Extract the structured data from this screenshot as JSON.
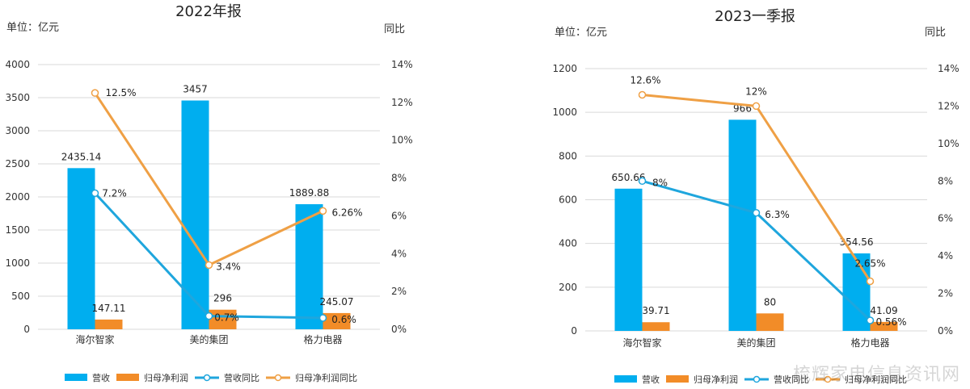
{
  "colors": {
    "revenue_bar": "#00AEEF",
    "profit_bar": "#F28C28",
    "revenue_yoy_line": "#1FA6DD",
    "profit_yoy_line": "#EFA045",
    "axis_text": "#333333",
    "grid": "#D9D9D9"
  },
  "watermark": "梳辉家电信息资讯网",
  "chart_data": [
    {
      "type": "bar",
      "title": "2022年报",
      "left_axis_label": "单位：亿元",
      "right_axis_label": "同比",
      "categories": [
        "海尔智家",
        "美的集团",
        "格力电器"
      ],
      "ylim": [
        0,
        4000
      ],
      "yticks": [
        0,
        500,
        1000,
        1500,
        2000,
        2500,
        3000,
        3500,
        4000
      ],
      "y2lim": [
        0,
        14
      ],
      "y2ticks": [
        "0%",
        "2%",
        "4%",
        "6%",
        "8%",
        "10%",
        "12%",
        "14%"
      ],
      "grid": true,
      "legend_position": "bottom",
      "series": [
        {
          "name": "营收",
          "kind": "bar",
          "axis": "left",
          "values": [
            2435.14,
            3457,
            1889.88
          ],
          "labels": [
            "2435.14",
            "3457",
            "1889.88"
          ]
        },
        {
          "name": "归母净利润",
          "kind": "bar",
          "axis": "left",
          "values": [
            147.11,
            296,
            245.07
          ],
          "labels": [
            "147.11",
            "296",
            "245.07"
          ]
        },
        {
          "name": "营收同比",
          "kind": "line",
          "axis": "right",
          "values": [
            7.2,
            0.7,
            0.6
          ],
          "labels": [
            "7.2%",
            "0.7%",
            "0.6%"
          ]
        },
        {
          "name": "归母净利润同比",
          "kind": "line",
          "axis": "right",
          "values": [
            12.5,
            3.4,
            6.26
          ],
          "labels": [
            "12.5%",
            "3.4%",
            "6.26%"
          ]
        }
      ]
    },
    {
      "type": "bar",
      "title": "2023一季报",
      "left_axis_label": "单位：亿元",
      "right_axis_label": "同比",
      "categories": [
        "海尔智家",
        "美的集团",
        "格力电器"
      ],
      "ylim": [
        0,
        1200
      ],
      "yticks": [
        0,
        200,
        400,
        600,
        800,
        1000,
        1200
      ],
      "y2lim": [
        0,
        14
      ],
      "y2ticks": [
        "0%",
        "2%",
        "4%",
        "6%",
        "8%",
        "10%",
        "12%",
        "14%"
      ],
      "grid": true,
      "legend_position": "bottom",
      "series": [
        {
          "name": "营收",
          "kind": "bar",
          "axis": "left",
          "values": [
            650.66,
            966,
            354.56
          ],
          "labels": [
            "650.66",
            "966",
            "354.56"
          ]
        },
        {
          "name": "归母净利润",
          "kind": "bar",
          "axis": "left",
          "values": [
            39.71,
            80,
            41.09
          ],
          "labels": [
            "39.71",
            "80",
            "41.09"
          ]
        },
        {
          "name": "营收同比",
          "kind": "line",
          "axis": "right",
          "values": [
            8,
            6.3,
            0.56
          ],
          "labels": [
            "8%",
            "6.3%",
            "0.56%"
          ]
        },
        {
          "name": "归母净利润同比",
          "kind": "line",
          "axis": "right",
          "values": [
            12.6,
            12,
            2.65
          ],
          "labels": [
            "12.6%",
            "12%",
            "2.65%"
          ]
        }
      ]
    }
  ]
}
